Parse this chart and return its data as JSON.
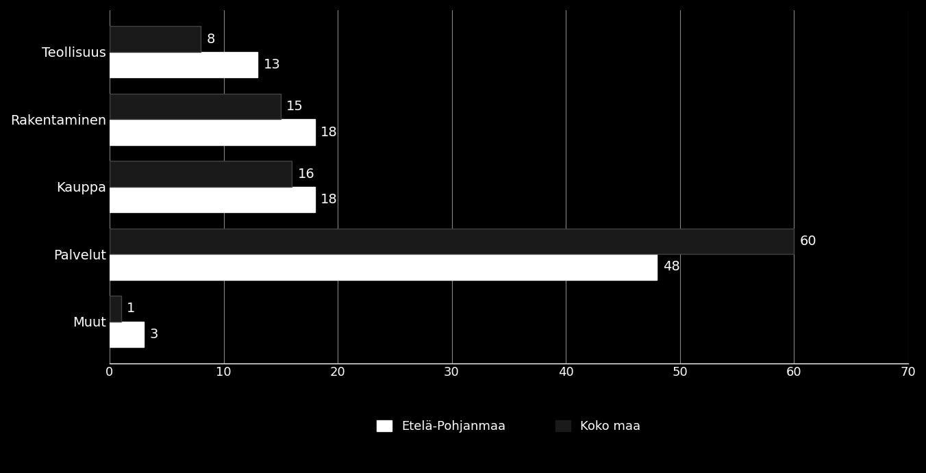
{
  "categories": [
    "Teollisuus",
    "Rakentaminen",
    "Kauppa",
    "Palvelut",
    "Muut"
  ],
  "etela_pohjanmaa": [
    13,
    18,
    18,
    48,
    3
  ],
  "koko_maa": [
    8,
    15,
    16,
    60,
    1
  ],
  "bar_color_etela": "#ffffff",
  "bar_color_koko": "#1a1a1a",
  "background_color": "#000000",
  "text_color": "#ffffff",
  "axis_color": "#ffffff",
  "xlim": [
    0,
    70
  ],
  "xticks": [
    0,
    10,
    20,
    30,
    40,
    50,
    60,
    70
  ],
  "legend_etela": "Etelä-Pohjanmaa",
  "legend_koko": "Koko maa",
  "bar_height": 0.38,
  "label_fontsize": 14,
  "tick_fontsize": 13,
  "legend_fontsize": 13
}
